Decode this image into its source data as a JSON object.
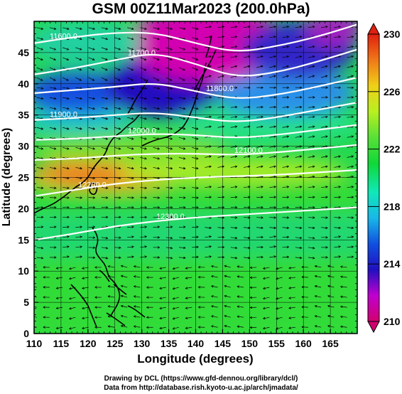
{
  "title": "GSM 00Z11Mar2023 (200.0hPa)",
  "xlabel": "Longitude (degrees)",
  "ylabel": "Latitude  (degrees)",
  "credit_line1": "Drawing by DCL (https://www.gfd-dennou.org/library/dcl/)",
  "credit_line2": "Data from http://database.rish.kyoto-u.ac.jp/arch/jmadata/",
  "map": {
    "lon_range": [
      110,
      170
    ],
    "lat_range": [
      0,
      50
    ],
    "x_ticks": [
      110,
      115,
      120,
      125,
      130,
      135,
      140,
      145,
      150,
      155,
      160,
      165
    ],
    "y_ticks": [
      0,
      5,
      10,
      15,
      20,
      25,
      30,
      35,
      40,
      45
    ],
    "grid": true,
    "background_field": "temperature",
    "overlays": [
      "geopotential height contours",
      "wind streamlines",
      "coastlines"
    ]
  },
  "colorbar": {
    "min": 210,
    "max": 230,
    "labels": [
      "230",
      "226",
      "222",
      "218",
      "214",
      "210"
    ],
    "label_values": [
      230,
      226,
      222,
      218,
      214,
      210
    ],
    "stops": [
      "#d2006e",
      "#c000d0",
      "#2010c0",
      "#1050e0",
      "#18b8e8",
      "#10e8b8",
      "#10d838",
      "#58e038",
      "#b8f020",
      "#f0d018",
      "#f07818",
      "#e02010"
    ]
  },
  "contours": [
    {
      "label": "11600.0",
      "lats": [
        46.5,
        47.5,
        48.2,
        48.2,
        46.5,
        45.0,
        46.0,
        47.5,
        49.5
      ]
    },
    {
      "label": "11700.0",
      "lats": [
        41.5,
        42.5,
        43.8,
        45.0,
        43.2,
        41.0,
        41.8,
        43.5,
        45.5
      ]
    },
    {
      "label": "11800.0",
      "lats": [
        38.5,
        39.0,
        39.5,
        40.2,
        38.8,
        37.5,
        38.2,
        39.5,
        41.0
      ]
    },
    {
      "label": "11900.0",
      "lats": [
        34.2,
        34.5,
        35.0,
        35.4,
        34.6,
        33.8,
        34.6,
        35.8,
        37.0
      ]
    },
    {
      "label": "12000.0",
      "lats": [
        31.0,
        31.2,
        31.6,
        32.0,
        31.8,
        31.3,
        31.8,
        32.6,
        33.4
      ]
    },
    {
      "label": "12100.0",
      "lats": [
        27.8,
        28.0,
        28.5,
        28.8,
        28.8,
        28.6,
        29.0,
        29.6,
        30.2
      ]
    },
    {
      "label": "12200.0",
      "lats": [
        22.0,
        23.0,
        24.0,
        24.6,
        25.0,
        25.2,
        25.4,
        25.8,
        26.2
      ]
    },
    {
      "label": "12300.0",
      "lats": [
        15.0,
        16.0,
        17.2,
        18.0,
        18.6,
        19.0,
        19.4,
        19.8,
        20.2
      ]
    }
  ]
}
